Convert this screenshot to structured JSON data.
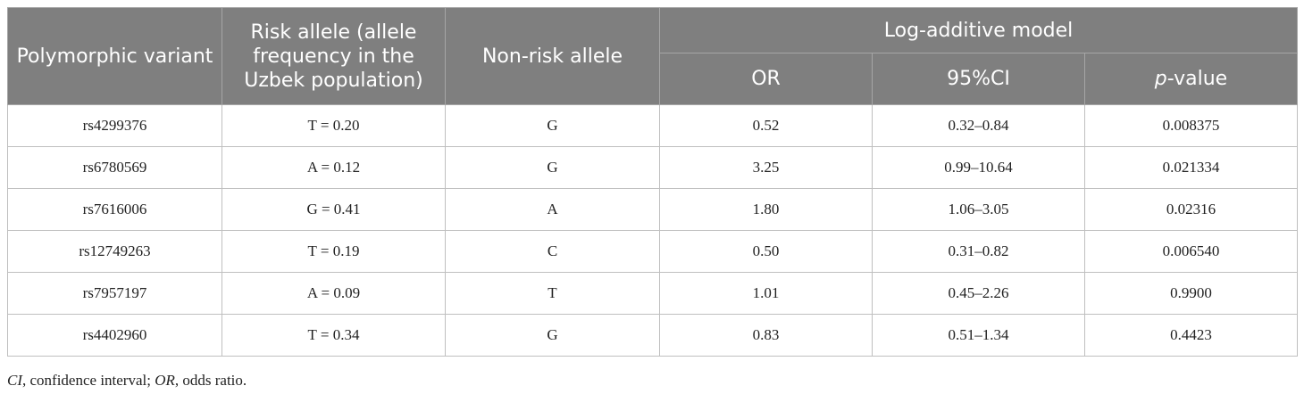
{
  "table": {
    "headers": {
      "variant": "Polymorphic variant",
      "risk_allele": "Risk allele (allele frequency in the Uzbek population)",
      "non_risk": "Non-risk allele",
      "model": "Log-additive model",
      "or": "OR",
      "ci": "95%CI",
      "pvalue_prefix": "p",
      "pvalue_suffix": "-value"
    },
    "rows": [
      {
        "variant": "rs4299376",
        "risk": "T = 0.20",
        "nonrisk": "G",
        "or": "0.52",
        "ci": "0.32–0.84",
        "p": "0.008375"
      },
      {
        "variant": "rs6780569",
        "risk": "A = 0.12",
        "nonrisk": "G",
        "or": "3.25",
        "ci": "0.99–10.64",
        "p": "0.021334"
      },
      {
        "variant": "rs7616006",
        "risk": "G = 0.41",
        "nonrisk": "A",
        "or": "1.80",
        "ci": "1.06–3.05",
        "p": "0.02316"
      },
      {
        "variant": "rs12749263",
        "risk": "T = 0.19",
        "nonrisk": "C",
        "or": "0.50",
        "ci": "0.31–0.82",
        "p": "0.006540"
      },
      {
        "variant": "rs7957197",
        "risk": "A = 0.09",
        "nonrisk": "T",
        "or": "1.01",
        "ci": "0.45–2.26",
        "p": "0.9900"
      },
      {
        "variant": "rs4402960",
        "risk": "T = 0.34",
        "nonrisk": "G",
        "or": "0.83",
        "ci": "0.51–1.34",
        "p": "0.4423"
      }
    ]
  },
  "footnote": {
    "ci_abbr": "CI",
    "ci_text": ", confidence interval; ",
    "or_abbr": "OR",
    "or_text": ", odds ratio."
  },
  "colors": {
    "header_bg": "#7f7f7f",
    "header_text": "#ffffff",
    "border": "#bfbfbf"
  }
}
